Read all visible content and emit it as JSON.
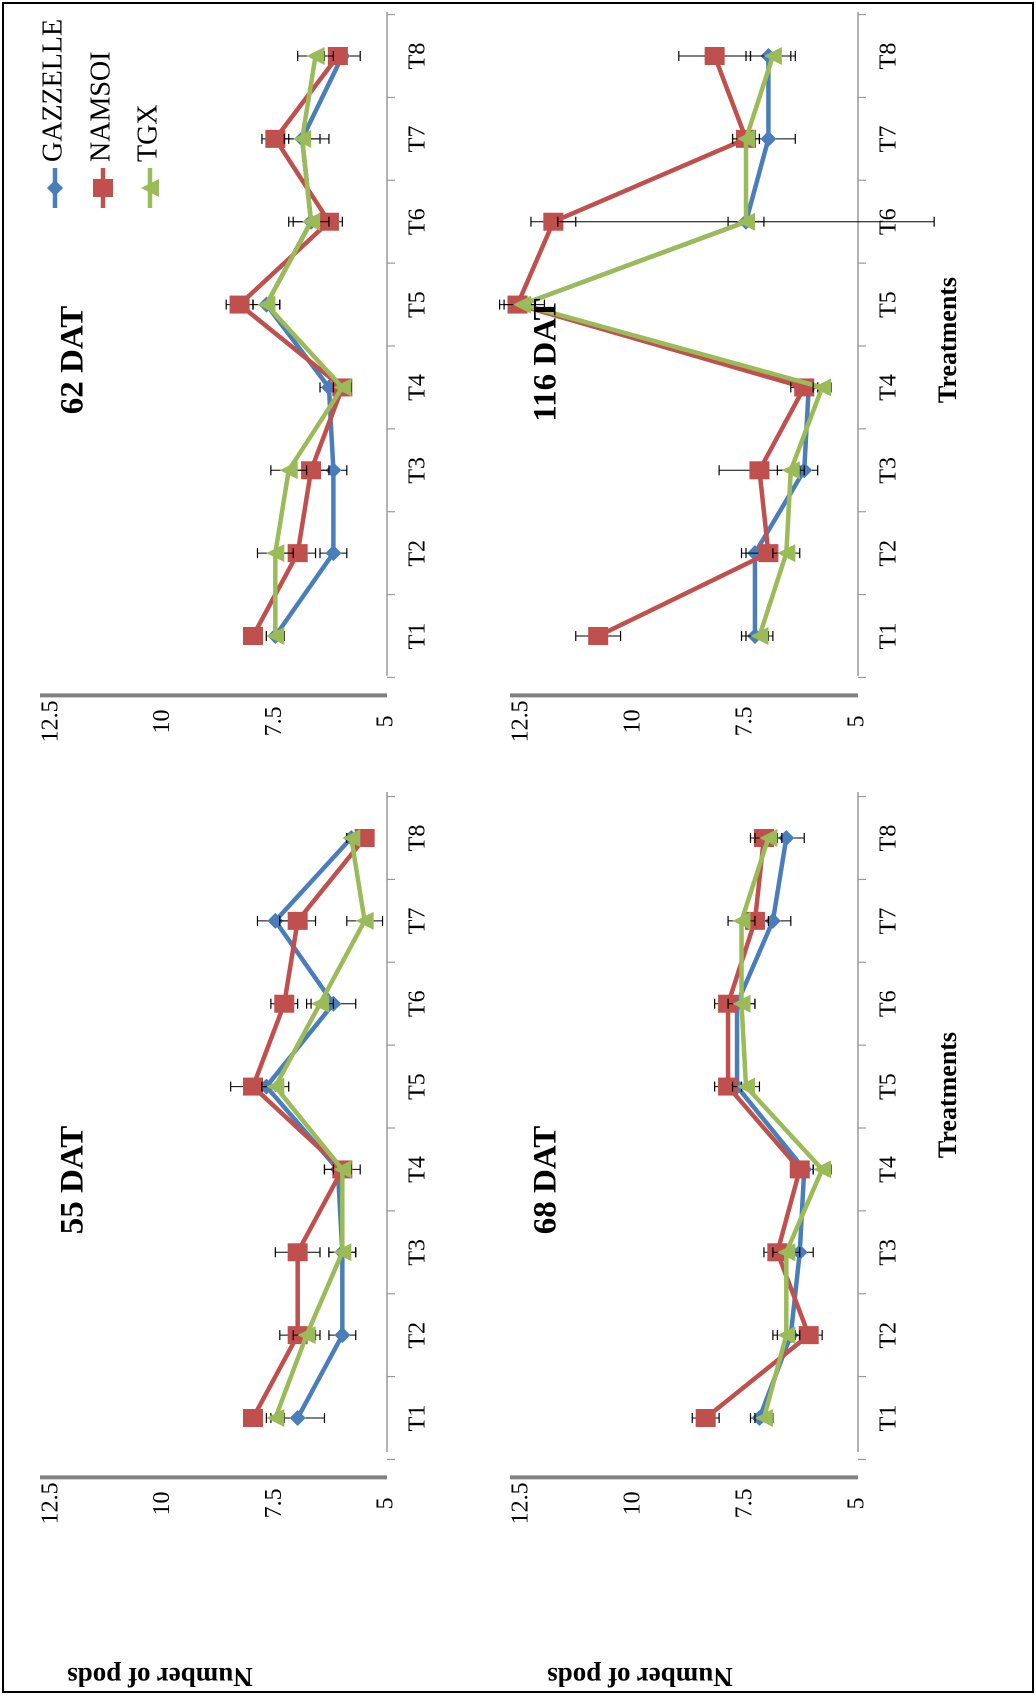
{
  "colors": {
    "GAZZELLE": "#4a7ebb",
    "NAMSOI": "#c0504d",
    "TGX": "#9bbb59",
    "axis": "#808080",
    "errorbar": "#000000"
  },
  "legend": {
    "items": [
      {
        "name": "GAZZELLE",
        "marker": "diamond"
      },
      {
        "name": "NAMSOI",
        "marker": "square"
      },
      {
        "name": "TGX",
        "marker": "triangle"
      }
    ]
  },
  "chart_data": [
    {
      "type": "line",
      "title": "55 DAT",
      "xlabel": "",
      "ylabel": "Number of pods",
      "categories": [
        "T1",
        "T2",
        "T3",
        "T4",
        "T5",
        "T6",
        "T7",
        "T8"
      ],
      "yticks": [
        "5",
        "7.5",
        "10",
        "12.5"
      ],
      "ylim": [
        5,
        12.5
      ],
      "series": [
        {
          "name": "GAZZELLE",
          "values": [
            7.0,
            6.0,
            6.0,
            6.1,
            7.7,
            6.2,
            7.5,
            5.8
          ],
          "errors": [
            0.6,
            0.3,
            0.3,
            0.3,
            0.3,
            0.5,
            0.4,
            0.1
          ]
        },
        {
          "name": "NAMSOI",
          "values": [
            8.0,
            7.0,
            7.0,
            6.0,
            8.0,
            7.3,
            7.0,
            5.5
          ],
          "errors": [
            0.2,
            0.4,
            0.5,
            0.4,
            0.5,
            0.3,
            0.4,
            0.1
          ]
        },
        {
          "name": "TGX",
          "values": [
            7.5,
            6.8,
            6.0,
            6.0,
            7.5,
            6.5,
            5.5,
            5.8
          ],
          "errors": [
            0.2,
            0.3,
            0.3,
            0.2,
            0.3,
            0.3,
            0.4,
            0.1
          ]
        }
      ]
    },
    {
      "type": "line",
      "title": "62 DAT",
      "xlabel": "",
      "ylabel": "",
      "categories": [
        "T1",
        "T2",
        "T3",
        "T4",
        "T5",
        "T6",
        "T7",
        "T8"
      ],
      "yticks": [
        "5",
        "7.5",
        "10",
        "12.5"
      ],
      "ylim": [
        5,
        12.5
      ],
      "series": [
        {
          "name": "GAZZELLE",
          "values": [
            7.5,
            6.2,
            6.2,
            6.3,
            7.7,
            6.7,
            6.9,
            6.0
          ],
          "errors": [
            0.2,
            0.3,
            0.3,
            0.2,
            0.3,
            0.5,
            0.6,
            0.4
          ]
        },
        {
          "name": "NAMSOI",
          "values": [
            8.0,
            7.0,
            6.7,
            6.0,
            8.3,
            6.3,
            7.5,
            6.1
          ],
          "errors": [
            0.2,
            0.4,
            0.4,
            0.2,
            0.3,
            0.3,
            0.3,
            0.2
          ]
        },
        {
          "name": "TGX",
          "values": [
            7.5,
            7.5,
            7.2,
            6.0,
            7.7,
            6.7,
            6.9,
            6.6
          ],
          "errors": [
            0.2,
            0.4,
            0.4,
            0.2,
            0.3,
            0.4,
            0.4,
            0.4
          ]
        }
      ]
    },
    {
      "type": "line",
      "title": "68 DAT",
      "xlabel": "Treatments",
      "ylabel": "Number of pods",
      "categories": [
        "T1",
        "T2",
        "T3",
        "T4",
        "T5",
        "T6",
        "T7",
        "T8"
      ],
      "yticks": [
        "5",
        "7.5",
        "10",
        "12.5"
      ],
      "ylim": [
        5,
        12.5
      ],
      "series": [
        {
          "name": "GAZZELLE",
          "values": [
            7.2,
            6.5,
            6.3,
            6.2,
            7.7,
            7.7,
            6.9,
            6.6
          ],
          "errors": [
            0.2,
            0.3,
            0.3,
            0.2,
            0.3,
            0.4,
            0.4,
            0.4
          ]
        },
        {
          "name": "NAMSOI",
          "values": [
            8.4,
            6.1,
            6.8,
            6.3,
            7.9,
            7.9,
            7.3,
            7.1
          ],
          "errors": [
            0.3,
            0.3,
            0.3,
            0.2,
            0.3,
            0.3,
            0.3,
            0.3
          ]
        },
        {
          "name": "TGX",
          "values": [
            7.1,
            6.6,
            6.6,
            5.8,
            7.5,
            7.6,
            7.6,
            7.0
          ],
          "errors": [
            0.2,
            0.3,
            0.3,
            0.2,
            0.3,
            0.3,
            0.3,
            0.3
          ]
        }
      ]
    },
    {
      "type": "line",
      "title": "116 DAT",
      "xlabel": "Treatments",
      "ylabel": "",
      "categories": [
        "T1",
        "T2",
        "T3",
        "T4",
        "T5",
        "T6",
        "T7",
        "T8"
      ],
      "yticks": [
        "5",
        "7.5",
        "10",
        "12.5"
      ],
      "ylim": [
        5,
        12.5
      ],
      "series": [
        {
          "name": "GAZZELLE",
          "values": [
            7.3,
            7.3,
            6.2,
            6.1,
            12.5,
            7.5,
            7.0,
            7.0
          ],
          "errors": [
            0.3,
            0.3,
            0.3,
            0.2,
            0.3,
            0.4,
            0.6,
            0.5
          ]
        },
        {
          "name": "NAMSOI",
          "values": [
            10.8,
            7.0,
            7.2,
            6.2,
            12.6,
            11.8,
            7.5,
            8.2
          ],
          "errors": [
            0.5,
            0.5,
            0.9,
            0.3,
            0.3,
            0.5,
            0.3,
            0.8
          ]
        },
        {
          "name": "TGX",
          "values": [
            7.2,
            6.6,
            6.5,
            5.8,
            12.5,
            7.5,
            7.5,
            6.9
          ],
          "errors": [
            0.3,
            0.3,
            0.3,
            0.2,
            0.5,
            4.2,
            0.3,
            0.5
          ]
        }
      ]
    }
  ]
}
